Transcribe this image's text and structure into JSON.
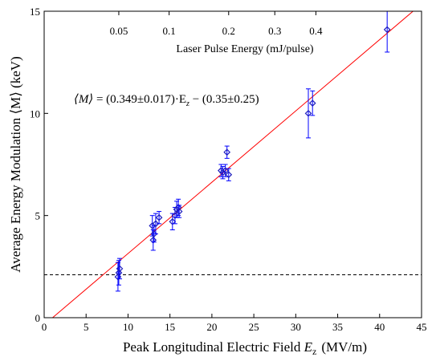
{
  "chart_data": {
    "type": "scatter",
    "xlabel": "Peak Longitudinal Electric Field E_z (MV/m)",
    "xlabel_main": "Peak Longitudinal Electric Field ",
    "xlabel_var": "E",
    "xlabel_sub": "z",
    "xlabel_unit": "(MV/m)",
    "ylabel": "Average Energy Modulation ⟨M⟩ (keV)",
    "xlim": [
      0,
      45
    ],
    "ylim": [
      0,
      15
    ],
    "xticks": [
      0,
      5,
      10,
      15,
      20,
      25,
      30,
      35,
      40,
      45
    ],
    "yticks": [
      0,
      5,
      10,
      15
    ],
    "grid": false,
    "points": [
      {
        "x": 8.8,
        "y": 2.0,
        "err": 0.7
      },
      {
        "x": 8.9,
        "y": 2.2,
        "err": 0.6
      },
      {
        "x": 9.0,
        "y": 2.4,
        "err": 0.5
      },
      {
        "x": 12.9,
        "y": 4.5,
        "err": 0.5
      },
      {
        "x": 13.0,
        "y": 3.8,
        "err": 0.5
      },
      {
        "x": 13.1,
        "y": 4.1,
        "err": 0.4
      },
      {
        "x": 13.3,
        "y": 4.6,
        "err": 0.5
      },
      {
        "x": 13.7,
        "y": 4.9,
        "err": 0.3
      },
      {
        "x": 15.3,
        "y": 4.7,
        "err": 0.4
      },
      {
        "x": 15.6,
        "y": 5.0,
        "err": 0.4
      },
      {
        "x": 15.8,
        "y": 5.3,
        "err": 0.4
      },
      {
        "x": 16.0,
        "y": 5.4,
        "err": 0.4
      },
      {
        "x": 16.1,
        "y": 5.2,
        "err": 0.3
      },
      {
        "x": 21.1,
        "y": 7.2,
        "err": 0.3
      },
      {
        "x": 21.3,
        "y": 7.1,
        "err": 0.3
      },
      {
        "x": 21.6,
        "y": 7.2,
        "err": 0.3
      },
      {
        "x": 21.8,
        "y": 8.1,
        "err": 0.3
      },
      {
        "x": 22.0,
        "y": 7.0,
        "err": 0.3
      },
      {
        "x": 31.5,
        "y": 10.0,
        "err": 1.2
      },
      {
        "x": 32.0,
        "y": 10.5,
        "err": 0.6
      },
      {
        "x": 40.9,
        "y": 14.1,
        "err": 1.1
      }
    ],
    "fit": {
      "slope": 0.349,
      "intercept": -0.35
    },
    "threshold_y": 2.1,
    "equation": {
      "lhs": "⟨M⟩",
      "rhs": " = (0.349±0.017)·E",
      "sub": "z",
      "tail": " − (0.35±0.25)"
    },
    "top_axis": {
      "label": "Laser Pulse Energy (mJ/pulse)",
      "ticks": [
        {
          "label": "0.05",
          "x": 8.9
        },
        {
          "label": "0.1",
          "x": 14.9
        },
        {
          "label": "0.2",
          "x": 22.0
        },
        {
          "label": "0.3",
          "x": 27.5
        },
        {
          "label": "0.4",
          "x": 32.4
        }
      ]
    },
    "colors": {
      "points": "#1f1fbf",
      "errorbars": "#0000ff",
      "fit": "#ff0000",
      "threshold": "#000000"
    }
  }
}
